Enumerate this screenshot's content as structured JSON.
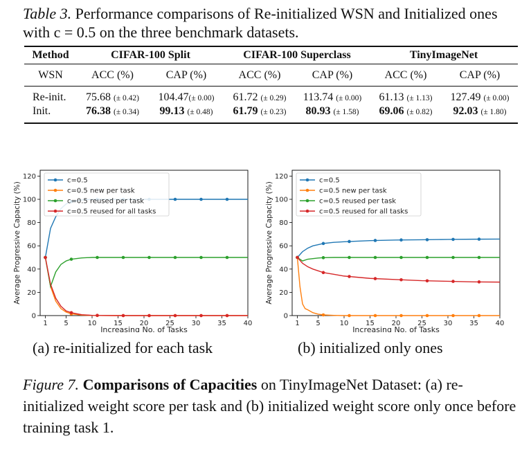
{
  "table_caption": {
    "label": "Table 3.",
    "text": "Performance comparisons of Re-initialized WSN and Initialized ones with c = 0.5 on the three benchmark datasets."
  },
  "table": {
    "method_header": "Method",
    "groups": [
      "CIFAR-100 Split",
      "CIFAR-100 Superclass",
      "TinyImageNet"
    ],
    "sub_row_label": "WSN",
    "sub_headers": [
      "ACC (%)",
      "CAP (%)",
      "ACC (%)",
      "CAP (%)",
      "ACC (%)",
      "CAP (%)"
    ],
    "rows": [
      {
        "method": "Re-init.",
        "cells": [
          {
            "value": "75.68",
            "std": "(± 0.42)",
            "bold": false
          },
          {
            "value": "104.47",
            "std": "(± 0.00)",
            "bold": false
          },
          {
            "value": "61.72",
            "std": "(± 0.29)",
            "bold": false
          },
          {
            "value": "113.74",
            "std": "(± 0.00)",
            "bold": false
          },
          {
            "value": "61.13",
            "std": "(± 1.13)",
            "bold": false
          },
          {
            "value": "127.49",
            "std": "(± 0.00)",
            "bold": false
          }
        ]
      },
      {
        "method": "Init.",
        "cells": [
          {
            "value": "76.38",
            "std": "(± 0.34)",
            "bold": true
          },
          {
            "value": "99.13",
            "std": "(± 0.48)",
            "bold": true
          },
          {
            "value": "61.79",
            "std": "(± 0.23)",
            "bold": true
          },
          {
            "value": "80.93",
            "std": "(± 1.58)",
            "bold": true
          },
          {
            "value": "69.06",
            "std": "(± 0.82)",
            "bold": true
          },
          {
            "value": "92.03",
            "std": "(± 1.80)",
            "bold": true
          }
        ]
      }
    ]
  },
  "chart_data": [
    {
      "type": "line",
      "title": "",
      "xlabel": "Increasing No. of Tasks",
      "ylabel": "Average Progressive Capacity (%)",
      "xlim": [
        0,
        40
      ],
      "ylim": [
        0,
        125
      ],
      "xticks": [
        1,
        5,
        10,
        15,
        20,
        25,
        30,
        35,
        40
      ],
      "yticks": [
        0,
        20,
        40,
        60,
        80,
        100,
        120
      ],
      "legend_position": "top-left",
      "markers_x": [
        1,
        6,
        11,
        16,
        21,
        26,
        31,
        36
      ],
      "series": [
        {
          "name": "c=0.5",
          "color": "#1f77b4",
          "x": [
            1,
            2,
            3,
            4,
            5,
            6,
            8,
            10,
            15,
            20,
            25,
            30,
            35,
            40
          ],
          "y": [
            50,
            75,
            85,
            92,
            96,
            98,
            99.5,
            100,
            100,
            100,
            100,
            100,
            100,
            100
          ]
        },
        {
          "name": "c=0.5 new per task",
          "color": "#ff7f0e",
          "x": [
            1,
            2,
            3,
            4,
            5,
            6,
            8,
            10,
            15,
            20,
            25,
            30,
            35,
            40
          ],
          "y": [
            50,
            25,
            12.5,
            6,
            3,
            1.5,
            0.4,
            0.1,
            0,
            0,
            0,
            0,
            0,
            0
          ]
        },
        {
          "name": "c=0.5 reused per task",
          "color": "#2ca02c",
          "x": [
            1,
            2,
            3,
            4,
            5,
            6,
            8,
            10,
            15,
            20,
            25,
            30,
            35,
            40
          ],
          "y": [
            50,
            25,
            37.5,
            44,
            47,
            48.5,
            49.6,
            50,
            50,
            50,
            50,
            50,
            50,
            50
          ]
        },
        {
          "name": "c=0.5 reused for all tasks",
          "color": "#d62728",
          "x": [
            1,
            2,
            3,
            4,
            5,
            6,
            8,
            10,
            15,
            20,
            25,
            30,
            35,
            40
          ],
          "y": [
            50,
            27,
            15,
            8,
            4,
            2.5,
            0.8,
            0.2,
            0,
            0,
            0,
            0,
            0,
            0
          ]
        }
      ]
    },
    {
      "type": "line",
      "title": "",
      "xlabel": "Increasing No. of Tasks",
      "ylabel": "Average Progressive Capacity (%)",
      "xlim": [
        0,
        40
      ],
      "ylim": [
        0,
        125
      ],
      "xticks": [
        1,
        5,
        10,
        15,
        20,
        25,
        30,
        35,
        40
      ],
      "yticks": [
        0,
        20,
        40,
        60,
        80,
        100,
        120
      ],
      "legend_position": "top-left",
      "markers_x": [
        1,
        6,
        11,
        16,
        21,
        26,
        31,
        36
      ],
      "series": [
        {
          "name": "c=0.5",
          "color": "#1f77b4",
          "x": [
            1,
            2,
            3,
            4,
            5,
            6,
            8,
            10,
            15,
            20,
            25,
            30,
            35,
            40
          ],
          "y": [
            50,
            55,
            58,
            60,
            61,
            62,
            63,
            63.5,
            64.5,
            65,
            65.2,
            65.5,
            65.7,
            65.8
          ]
        },
        {
          "name": "c=0.5 new per task",
          "color": "#ff7f0e",
          "x": [
            1,
            1.5,
            2,
            2.5,
            3,
            4,
            5,
            6,
            8,
            10,
            15,
            20,
            25,
            30,
            35,
            40
          ],
          "y": [
            50,
            25,
            10,
            6,
            5,
            2.5,
            1.2,
            0.6,
            0.2,
            0,
            0,
            0,
            0,
            0,
            0,
            0
          ]
        },
        {
          "name": "c=0.5 reused per task",
          "color": "#2ca02c",
          "x": [
            1,
            2,
            3,
            4,
            5,
            6,
            8,
            10,
            15,
            20,
            25,
            30,
            35,
            40
          ],
          "y": [
            50,
            47,
            48.5,
            49,
            49.5,
            49.8,
            50,
            50,
            50,
            50,
            50,
            50,
            50,
            50
          ]
        },
        {
          "name": "c=0.5 reused for all tasks",
          "color": "#d62728",
          "x": [
            1,
            2,
            3,
            4,
            5,
            6,
            8,
            10,
            15,
            20,
            25,
            30,
            35,
            40
          ],
          "y": [
            50,
            45,
            42,
            40,
            38.5,
            37,
            35.5,
            34,
            32,
            31,
            30,
            29.5,
            29,
            28.8
          ]
        }
      ]
    }
  ],
  "subcaptions": [
    "(a) re-initialized for each task",
    "(b) initialized only ones"
  ],
  "figure_caption": {
    "label": "Figure 7.",
    "bold": "Comparisons of Capacities",
    "text": " on TinyImageNet Dataset: (a) re-initialized weight score per task and (b) initialized weight score only once before training task 1."
  }
}
